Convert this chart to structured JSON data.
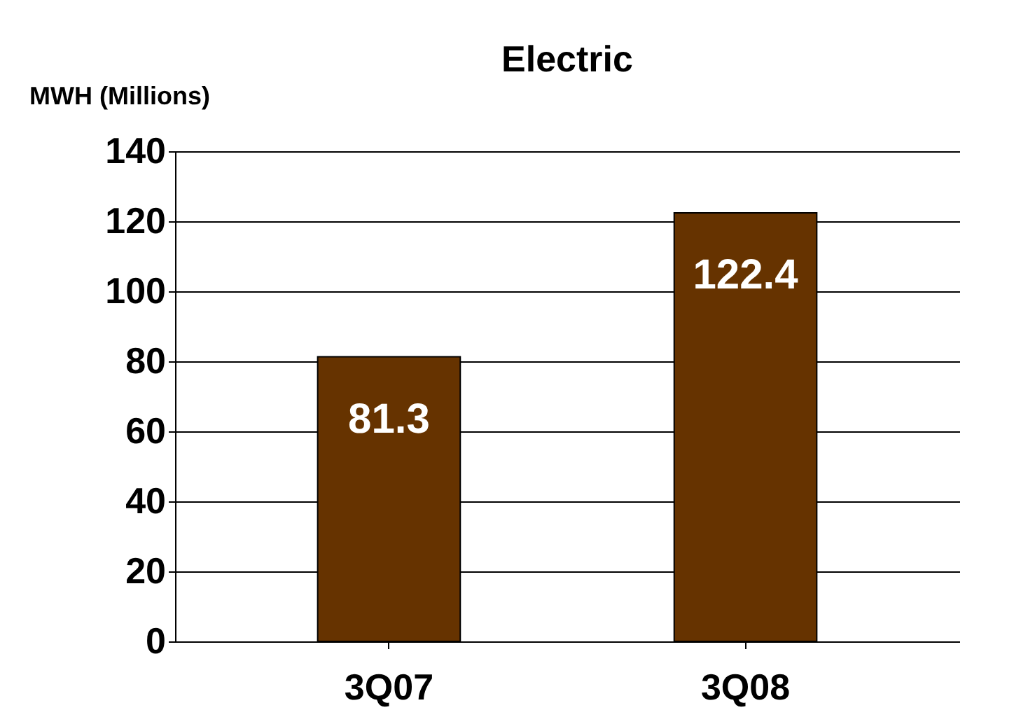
{
  "chart_data": {
    "type": "bar",
    "title": "Electric",
    "ylabel": "MWH (Millions)",
    "categories": [
      "3Q07",
      "3Q08"
    ],
    "values": [
      81.3,
      122.4
    ],
    "color": "#663300",
    "ylim": [
      0,
      140
    ],
    "yticks": [
      0,
      20,
      40,
      60,
      80,
      100,
      120,
      140
    ],
    "grid": "y",
    "data_labels": true
  }
}
